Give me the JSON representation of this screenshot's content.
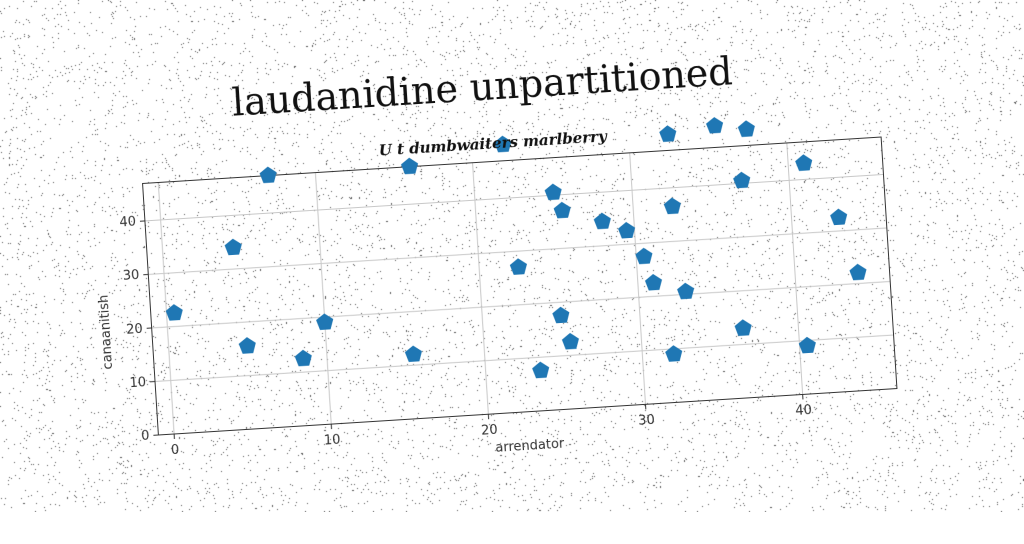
{
  "chart_data": {
    "type": "scatter",
    "title": "laudanidine unpartitioned",
    "subtitle": "U t dumbwaiters marlberry",
    "xlabel": "arrendator",
    "ylabel": "canaanitish",
    "xlim": [
      -1,
      46
    ],
    "ylim": [
      0,
      47
    ],
    "x_ticks": [
      0,
      10,
      20,
      30,
      40
    ],
    "y_ticks": [
      0,
      10,
      20,
      30,
      40
    ],
    "grid": true,
    "marker": "pentagon",
    "marker_color": "#1f77b4",
    "points": [
      {
        "x": 0.5,
        "y": 22.5
      },
      {
        "x": 4.5,
        "y": 34
      },
      {
        "x": 5,
        "y": 15.5
      },
      {
        "x": 7,
        "y": 47
      },
      {
        "x": 8.5,
        "y": 12.5
      },
      {
        "x": 10,
        "y": 19
      },
      {
        "x": 15.5,
        "y": 12
      },
      {
        "x": 16,
        "y": 47
      },
      {
        "x": 22,
        "y": 50
      },
      {
        "x": 22.5,
        "y": 27
      },
      {
        "x": 23.5,
        "y": 7.5
      },
      {
        "x": 25,
        "y": 40.5
      },
      {
        "x": 25,
        "y": 17.5
      },
      {
        "x": 25.5,
        "y": 37
      },
      {
        "x": 25.5,
        "y": 12.5
      },
      {
        "x": 28,
        "y": 34.5
      },
      {
        "x": 29.5,
        "y": 32.5
      },
      {
        "x": 30.5,
        "y": 27.5
      },
      {
        "x": 31,
        "y": 22.5
      },
      {
        "x": 32,
        "y": 9
      },
      {
        "x": 32.5,
        "y": 50
      },
      {
        "x": 32.5,
        "y": 36.5
      },
      {
        "x": 33,
        "y": 20.5
      },
      {
        "x": 35.5,
        "y": 51
      },
      {
        "x": 36.5,
        "y": 13
      },
      {
        "x": 37,
        "y": 40.5
      },
      {
        "x": 37.5,
        "y": 50
      },
      {
        "x": 40.5,
        "y": 9
      },
      {
        "x": 41,
        "y": 43
      },
      {
        "x": 43,
        "y": 32.5
      },
      {
        "x": 44,
        "y": 22
      }
    ]
  }
}
